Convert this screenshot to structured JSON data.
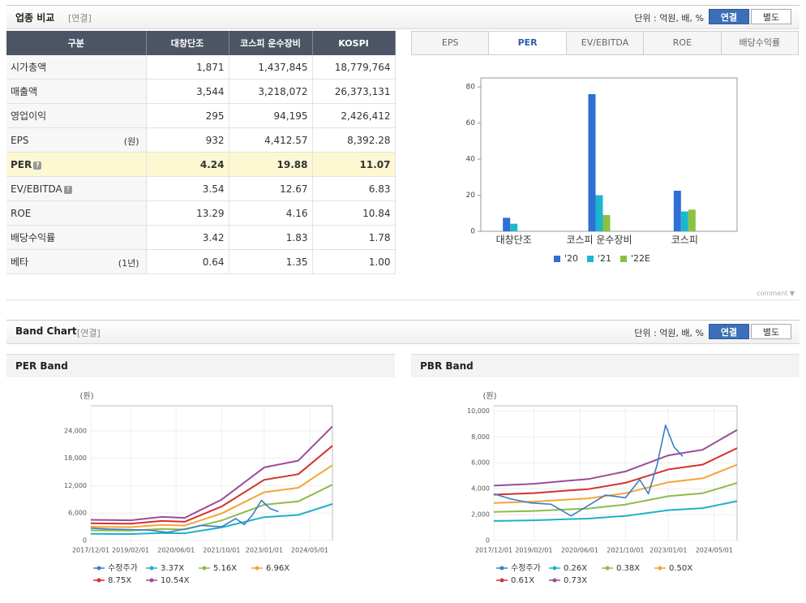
{
  "header": {
    "title": "업종 비교",
    "basis": "[연결]",
    "unit": "단위 : 억원, 배, %",
    "buttons": [
      "연결",
      "별도"
    ]
  },
  "table": {
    "columns": [
      "구분",
      "대창단조",
      "코스피 운수장비",
      "KOSPI"
    ],
    "rows": [
      {
        "label": "시가총액",
        "cells": [
          "1,871",
          "1,437,845",
          "18,779,764"
        ]
      },
      {
        "label": "매출액",
        "cells": [
          "3,544",
          "3,218,072",
          "26,373,131"
        ]
      },
      {
        "label": "영업이익",
        "cells": [
          "295",
          "94,195",
          "2,426,412"
        ]
      },
      {
        "label": "EPS",
        "unit": "(원)",
        "cells": [
          "932",
          "4,412.57",
          "8,392.28"
        ]
      },
      {
        "label": "PER",
        "help": true,
        "highlight": true,
        "cells": [
          "4.24",
          "19.88",
          "11.07"
        ]
      },
      {
        "label": "EV/EBITDA",
        "help": true,
        "cells": [
          "3.54",
          "12.67",
          "6.83"
        ]
      },
      {
        "label": "ROE",
        "cells": [
          "13.29",
          "4.16",
          "10.84"
        ]
      },
      {
        "label": "배당수익률",
        "cells": [
          "3.42",
          "1.83",
          "1.78"
        ]
      },
      {
        "label": "베타",
        "unit": "(1년)",
        "cells": [
          "0.64",
          "1.35",
          "1.00"
        ]
      }
    ]
  },
  "tabs": {
    "items": [
      "EPS",
      "PER",
      "EV/EBITDA",
      "ROE",
      "배당수익률"
    ],
    "active": 1
  },
  "comment": "comment",
  "band_header": {
    "title": "Band Chart",
    "basis": "[연결]",
    "unit": "단위 : 억원, 배, %",
    "buttons": [
      "연결",
      "별도"
    ]
  },
  "chart_data": [
    {
      "type": "bar",
      "categories": [
        "대창단조",
        "코스피 운수장비",
        "코스피"
      ],
      "series": [
        {
          "name": "'20",
          "color": "#2f6fd6",
          "values": [
            7.5,
            76,
            22.5
          ]
        },
        {
          "name": "'21",
          "color": "#1cb6cf",
          "values": [
            4.2,
            20,
            11
          ]
        },
        {
          "name": "'22E",
          "color": "#8cc043",
          "values": [
            null,
            9,
            12
          ]
        }
      ],
      "ylim": [
        0,
        85
      ],
      "yticks": [
        0,
        20,
        40,
        60,
        80
      ],
      "legend": "bottom"
    },
    {
      "type": "line",
      "title": "PER Band",
      "y_unit": "(원)",
      "x": [
        "2017/12/01",
        "2019/02/01",
        "2020/01/01",
        "2020/09/01",
        "2021/10/01",
        "2023/01/01",
        "2024/01/01",
        "2025/01/01"
      ],
      "xlim": [
        "2017/12/01",
        "2025/01/01"
      ],
      "xticks": [
        "2017/12/01",
        "2019/02/01",
        "2020/06/01",
        "2021/10/01",
        "2023/01/01",
        "2024/05/01"
      ],
      "ylim": [
        0,
        29500
      ],
      "yticks": [
        0,
        {
          "value": 6000,
          "label": "6,000"
        },
        {
          "value": 12000,
          "label": "12,000"
        },
        {
          "value": 18000,
          "label": "18,000"
        },
        {
          "value": 24000,
          "label": "24,000"
        }
      ],
      "grid": true,
      "legend": "bottom",
      "series": [
        {
          "name": "수정주가",
          "color": "#3b7dc4",
          "x": [
            "2017/12/01",
            "2018/06/01",
            "2019/01/01",
            "2019/08/01",
            "2020/03/01",
            "2020/09/01",
            "2021/03/01",
            "2021/10/01",
            "2022/03/01",
            "2022/06/01",
            "2022/09/01",
            "2022/12/01",
            "2023/03/01",
            "2023/06/01"
          ],
          "values": [
            2700,
            2500,
            2400,
            2300,
            1800,
            2500,
            3300,
            3000,
            4800,
            3500,
            5700,
            8800,
            7000,
            6300
          ]
        },
        {
          "name": "3.37X",
          "color": "#1fb0c8",
          "values": [
            1450,
            1415,
            1650,
            1585,
            2865,
            5120,
            5595,
            7990
          ]
        },
        {
          "name": "5.16X",
          "color": "#8dbb4c",
          "values": [
            2220,
            2165,
            2530,
            2425,
            4385,
            7845,
            8565,
            12230
          ]
        },
        {
          "name": "6.96X",
          "color": "#f3a533",
          "values": [
            2995,
            2925,
            3410,
            3270,
            5915,
            10580,
            11555,
            16495
          ]
        },
        {
          "name": "8.75X",
          "color": "#d2322d",
          "values": [
            3760,
            3675,
            4290,
            4110,
            7440,
            13300,
            14525,
            20740
          ]
        },
        {
          "name": "10.54X",
          "color": "#9a4d98",
          "values": [
            4530,
            4425,
            5165,
            4955,
            8960,
            16020,
            17495,
            24980
          ]
        }
      ]
    },
    {
      "type": "line",
      "title": "PBR Band",
      "y_unit": "(원)",
      "x": [
        "2017/12/01",
        "2019/02/01",
        "2020/01/01",
        "2020/09/01",
        "2021/10/01",
        "2023/01/01",
        "2024/01/01",
        "2025/01/01"
      ],
      "xlim": [
        "2017/12/01",
        "2025/01/01"
      ],
      "xticks": [
        "2017/12/01",
        "2019/02/01",
        "2020/06/01",
        "2021/10/01",
        "2023/01/01",
        "2024/05/01"
      ],
      "ylim": [
        0,
        10400
      ],
      "yticks": [
        0,
        {
          "value": 2000,
          "label": "2,000"
        },
        {
          "value": 4000,
          "label": "4,000"
        },
        {
          "value": 6000,
          "label": "6,000"
        },
        {
          "value": 8000,
          "label": "8,000"
        },
        {
          "value": 10000,
          "label": "10,000"
        }
      ],
      "grid": true,
      "legend": "bottom",
      "series": [
        {
          "name": "수정주가",
          "color": "#3b7dc4",
          "x": [
            "2017/12/01",
            "2018/06/01",
            "2019/01/01",
            "2019/08/01",
            "2020/03/01",
            "2020/09/01",
            "2021/03/01",
            "2021/10/01",
            "2022/03/01",
            "2022/06/01",
            "2022/09/01",
            "2022/12/01",
            "2023/03/01",
            "2023/06/01"
          ],
          "values": [
            3600,
            3200,
            2900,
            2800,
            1900,
            2700,
            3500,
            3300,
            4700,
            3600,
            5800,
            8900,
            7200,
            6500
          ]
        },
        {
          "name": "0.26X",
          "color": "#1fb0c8",
          "values": [
            1510,
            1560,
            1640,
            1690,
            1900,
            2340,
            2500,
            3040
          ]
        },
        {
          "name": "0.38X",
          "color": "#8dbb4c",
          "values": [
            2205,
            2280,
            2395,
            2470,
            2775,
            3420,
            3650,
            4445
          ]
        },
        {
          "name": "0.50X",
          "color": "#f3a533",
          "values": [
            2900,
            3000,
            3150,
            3250,
            3650,
            4500,
            4800,
            5850
          ]
        },
        {
          "name": "0.61X",
          "color": "#d2322d",
          "values": [
            3540,
            3660,
            3845,
            3965,
            4455,
            5490,
            5855,
            7135
          ]
        },
        {
          "name": "0.73X",
          "color": "#9a4d98",
          "values": [
            4235,
            4380,
            4600,
            4745,
            5330,
            6570,
            7010,
            8540
          ]
        }
      ]
    }
  ]
}
